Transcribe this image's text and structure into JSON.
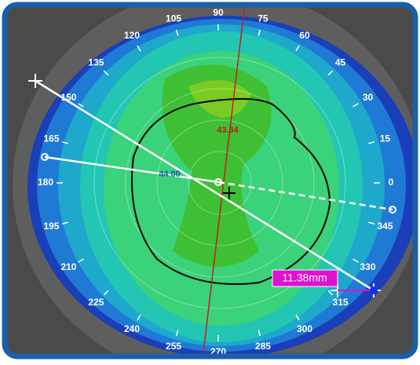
{
  "angles": [
    0,
    15,
    30,
    45,
    60,
    75,
    90,
    105,
    120,
    135,
    150,
    165,
    180,
    195,
    210,
    225,
    240,
    255,
    270,
    285,
    300,
    315,
    330,
    345
  ],
  "annotations": {
    "k_value_top": "43.34",
    "k_value_center": "44.00"
  },
  "measurement": "11.38mm"
}
